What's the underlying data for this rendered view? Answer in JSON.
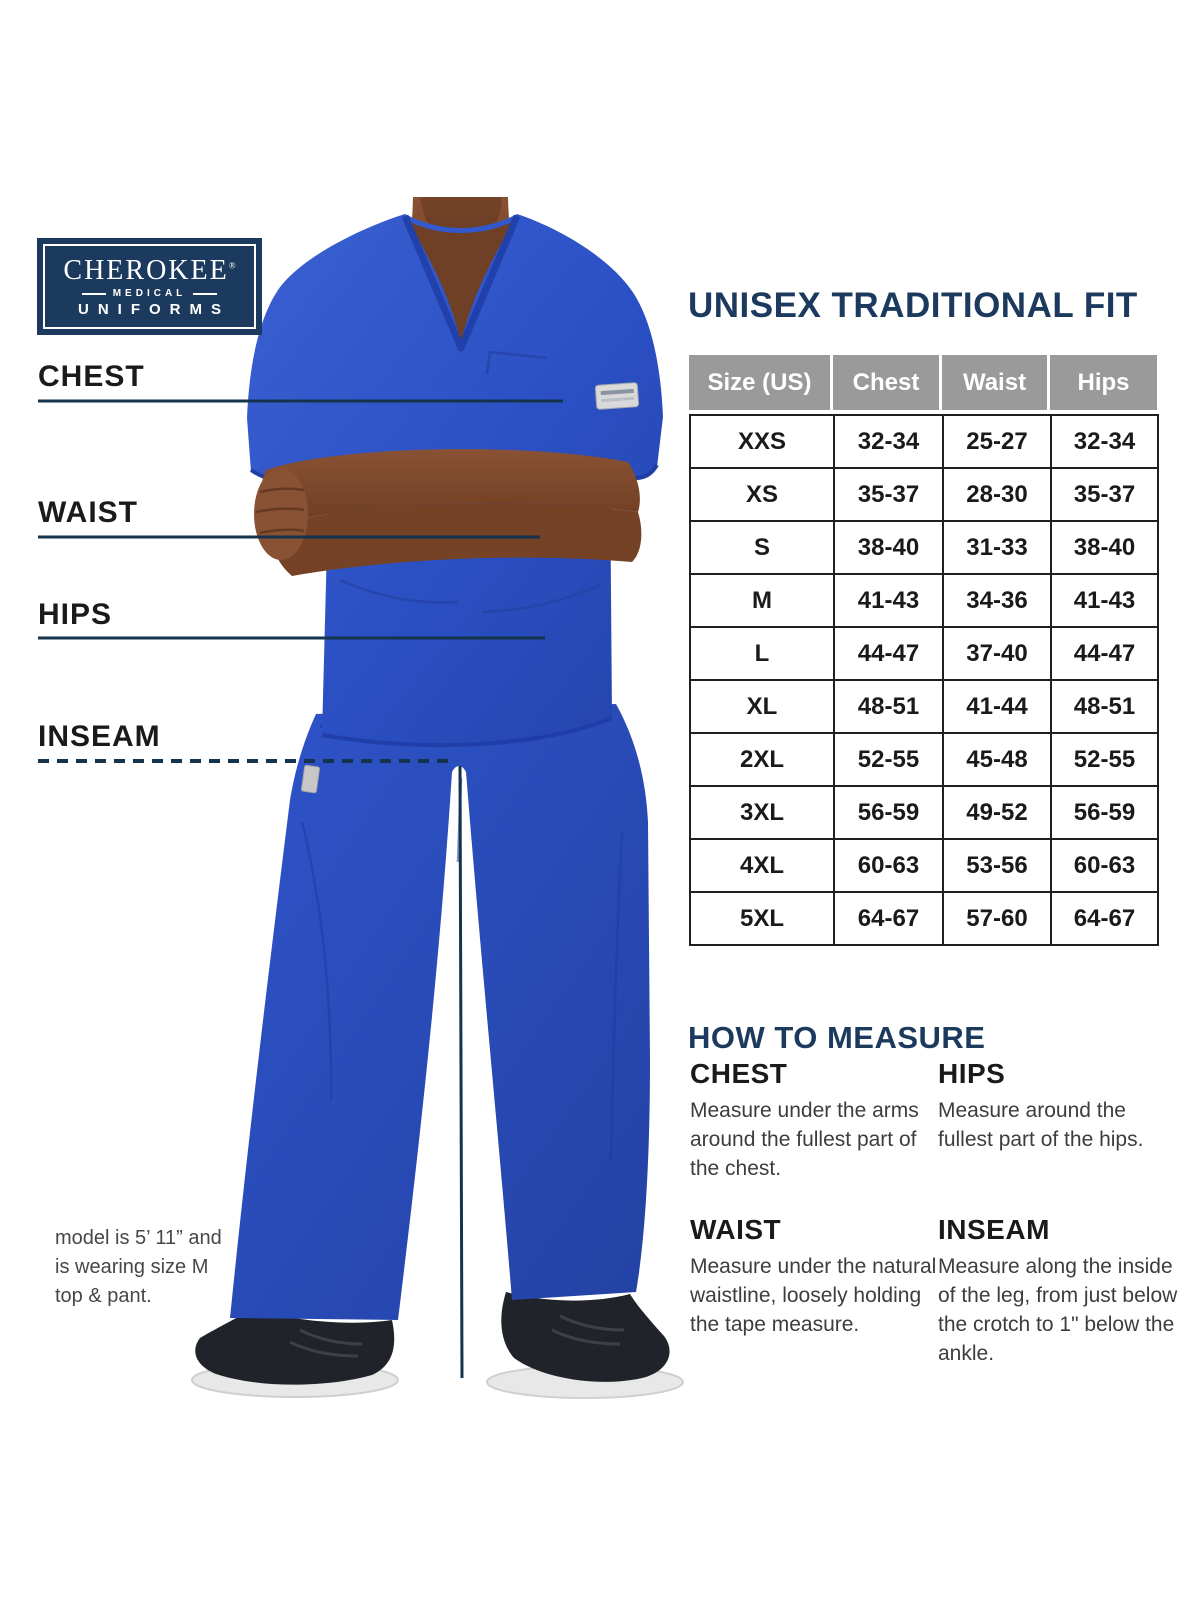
{
  "brand": {
    "name": "CHEROKEE",
    "registered": "®",
    "division": "MEDICAL",
    "product_line": "UNIFORMS"
  },
  "measurements": {
    "items": [
      {
        "label": "CHEST",
        "line_style": "solid"
      },
      {
        "label": "WAIST",
        "line_style": "solid"
      },
      {
        "label": "HIPS",
        "line_style": "solid"
      },
      {
        "label": "INSEAM",
        "line_style": "dashed"
      }
    ]
  },
  "model_note": {
    "lines": [
      "model is 5’ 11” and",
      "is wearing size M",
      "top & pant."
    ]
  },
  "size_chart": {
    "title": "UNISEX TRADITIONAL FIT",
    "columns": [
      "Size (US)",
      "Chest",
      "Waist",
      "Hips"
    ],
    "rows": [
      [
        "XXS",
        "32-34",
        "25-27",
        "32-34"
      ],
      [
        "XS",
        "35-37",
        "28-30",
        "35-37"
      ],
      [
        "S",
        "38-40",
        "31-33",
        "38-40"
      ],
      [
        "M",
        "41-43",
        "34-36",
        "41-43"
      ],
      [
        "L",
        "44-47",
        "37-40",
        "44-47"
      ],
      [
        "XL",
        "48-51",
        "41-44",
        "48-51"
      ],
      [
        "2XL",
        "52-55",
        "45-48",
        "52-55"
      ],
      [
        "3XL",
        "56-59",
        "49-52",
        "56-59"
      ],
      [
        "4XL",
        "60-63",
        "53-56",
        "60-63"
      ],
      [
        "5XL",
        "64-67",
        "57-60",
        "64-67"
      ]
    ]
  },
  "how_to_measure": {
    "title": "HOW TO MEASURE",
    "sections": [
      {
        "heading": "CHEST",
        "text": "Measure under the arms around the fullest part of the chest."
      },
      {
        "heading": "HIPS",
        "text": "Measure around the fullest part of the hips."
      },
      {
        "heading": "WAIST",
        "text": "Measure under the natural waistline, loosely holding the tape measure."
      },
      {
        "heading": "INSEAM",
        "text": "Measure along the inside of the leg, from just below the crotch to 1\" below the ankle."
      }
    ]
  },
  "colors": {
    "navy": "#1c3a5e",
    "line_navy": "#14334d",
    "header_gray": "#9a9a9a",
    "scrub_blue": "#2b50c4",
    "text_black": "#1a1a1a"
  }
}
